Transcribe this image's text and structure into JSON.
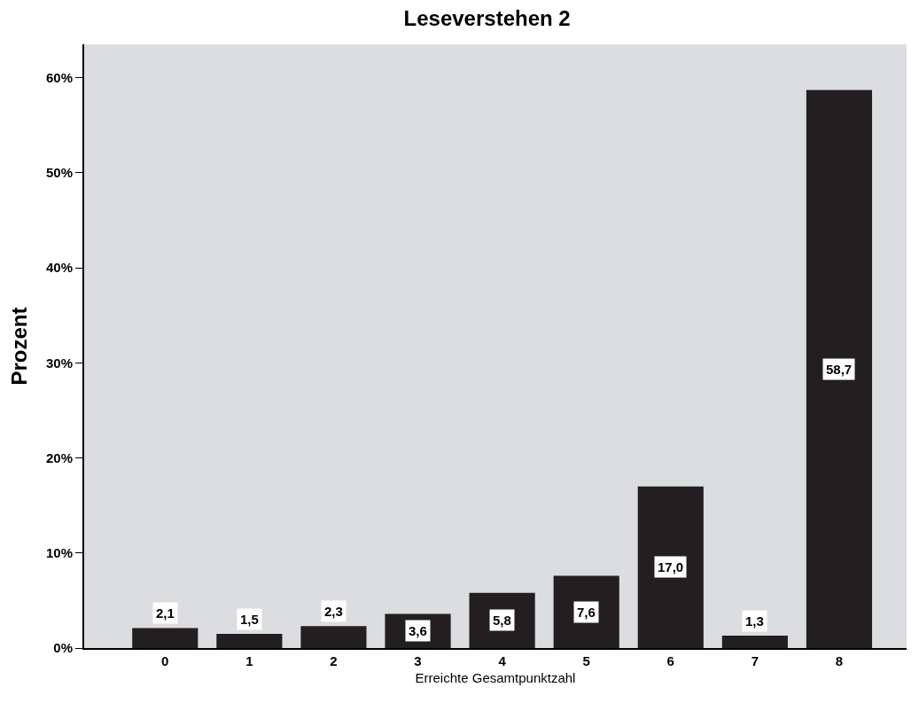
{
  "chart_data": {
    "type": "bar",
    "title": "Leseverstehen 2",
    "xlabel": "Erreichte Gesamtpunktzahl",
    "ylabel": "Prozent",
    "categories": [
      "0",
      "1",
      "2",
      "3",
      "4",
      "5",
      "6",
      "7",
      "8"
    ],
    "values": [
      2.1,
      1.5,
      2.3,
      3.6,
      5.8,
      7.6,
      17.0,
      1.3,
      58.7
    ],
    "value_labels": [
      "2,1",
      "1,5",
      "2,3",
      "3,6",
      "5,8",
      "7,6",
      "17,0",
      "1,3",
      "58,7"
    ],
    "color": "#231f20",
    "ylim": [
      0,
      63.5
    ],
    "yticks": [
      {
        "value": 0,
        "label": "0%"
      },
      {
        "value": 10,
        "label": "10%"
      },
      {
        "value": 20,
        "label": "20%"
      },
      {
        "value": 30,
        "label": "30%"
      },
      {
        "value": 40,
        "label": "40%"
      },
      {
        "value": 50,
        "label": "50%"
      },
      {
        "value": 60,
        "label": "60%"
      }
    ],
    "grid": false
  }
}
